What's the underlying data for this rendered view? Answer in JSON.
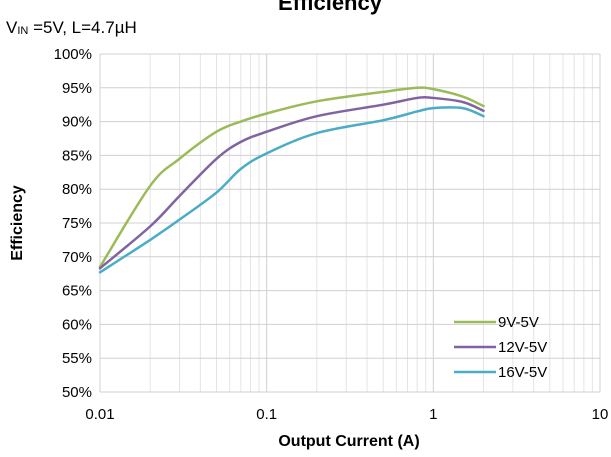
{
  "chart_data": {
    "type": "line",
    "title": "Efficiency",
    "subtitle": {
      "prefix": "V",
      "subscript": "IN",
      "rest": " =5V, L=4.7µH"
    },
    "xlabel": "Output Current (A)",
    "ylabel": "Efficiency",
    "xscale": "log",
    "xlim": [
      0.01,
      10
    ],
    "ylim": [
      50,
      100
    ],
    "x_ticks": [
      0.01,
      0.1,
      1,
      10
    ],
    "x_tick_labels": [
      "0.01",
      "0.1",
      "1",
      "10"
    ],
    "y_ticks": [
      50,
      55,
      60,
      65,
      70,
      75,
      80,
      85,
      90,
      95,
      100
    ],
    "y_tick_labels": [
      "50%",
      "55%",
      "60%",
      "65%",
      "70%",
      "75%",
      "80%",
      "85%",
      "90%",
      "95%",
      "100%"
    ],
    "grid": true,
    "legend_position": "bottom-right",
    "series": [
      {
        "name": "9V-5V",
        "color": "#9bbb59",
        "x": [
          0.01,
          0.02,
          0.03,
          0.05,
          0.07,
          0.1,
          0.2,
          0.5,
          0.8,
          1.0,
          1.5,
          2.0
        ],
        "y": [
          68.5,
          80.5,
          84.5,
          88.5,
          90.0,
          91.2,
          93.0,
          94.4,
          95.0,
          94.8,
          93.7,
          92.3
        ]
      },
      {
        "name": "12V-5V",
        "color": "#8064a2",
        "x": [
          0.01,
          0.02,
          0.03,
          0.05,
          0.07,
          0.1,
          0.2,
          0.5,
          0.8,
          1.0,
          1.5,
          2.0
        ],
        "y": [
          68.3,
          74.5,
          79.0,
          84.5,
          87.0,
          88.5,
          90.8,
          92.5,
          93.5,
          93.5,
          92.9,
          91.6
        ]
      },
      {
        "name": "16V-5V",
        "color": "#4bacc6",
        "x": [
          0.01,
          0.02,
          0.03,
          0.05,
          0.07,
          0.1,
          0.2,
          0.5,
          0.8,
          1.0,
          1.5,
          2.0
        ],
        "y": [
          67.7,
          72.5,
          75.5,
          79.5,
          83.0,
          85.3,
          88.3,
          90.2,
          91.5,
          92.0,
          92.0,
          90.8
        ]
      }
    ]
  }
}
